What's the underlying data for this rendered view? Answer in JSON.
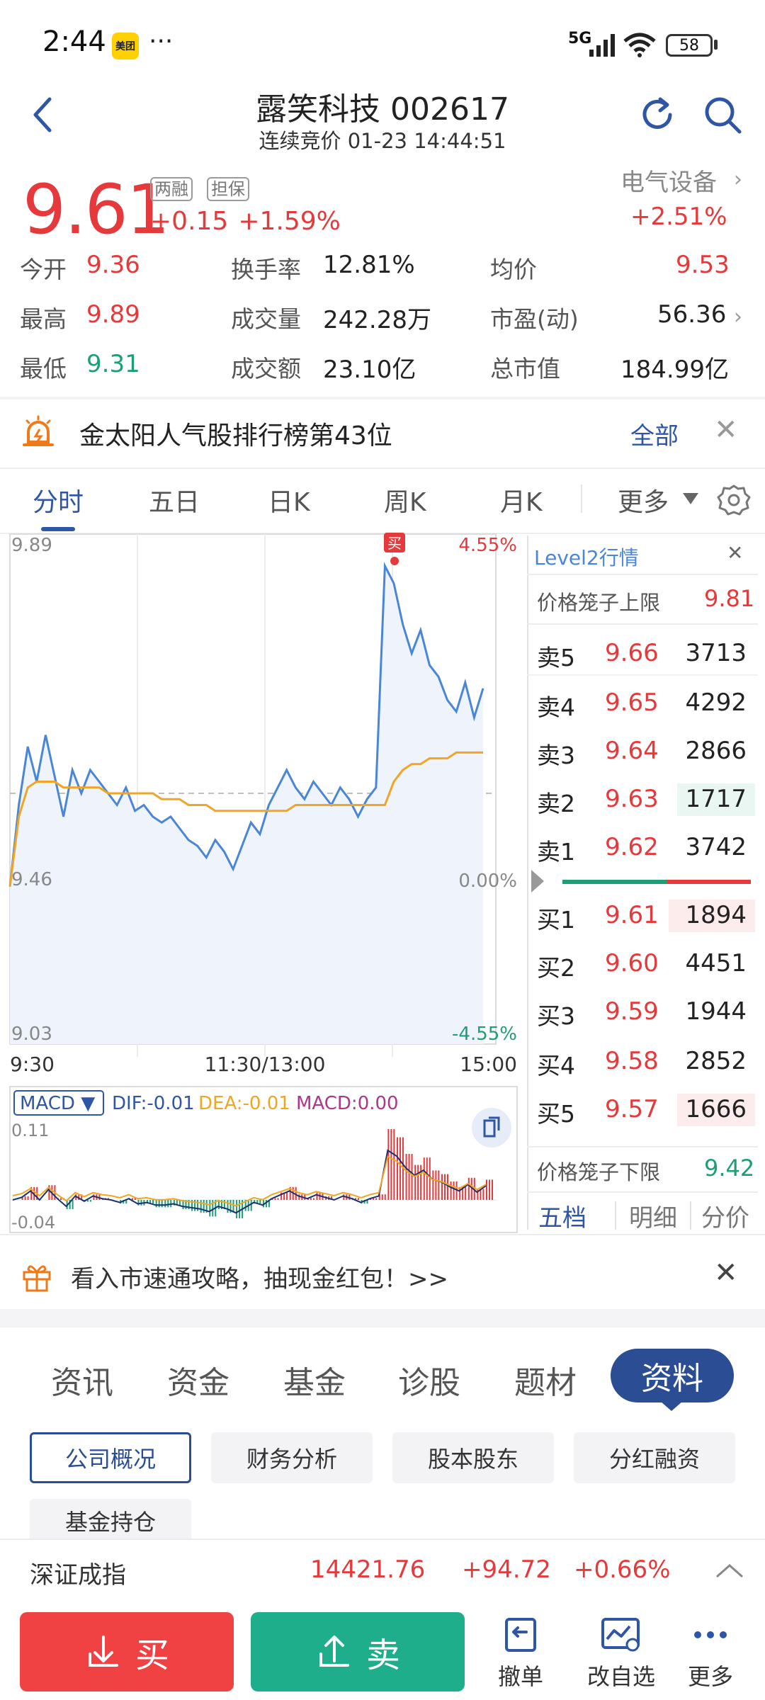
{
  "status_bar": {
    "time": "2:44",
    "app_badge": "美团",
    "more": "···",
    "network": "5G",
    "battery": "58"
  },
  "header": {
    "title": "露笑科技 002617",
    "subtitle": "连续竞价 01-23 14:44:51"
  },
  "quote": {
    "price": "9.61",
    "tag1": "两融",
    "tag2": "担保",
    "change": "+0.15",
    "change_pct": "+1.59%",
    "sector": "电气设备",
    "sector_change": "+2.51%",
    "stats": [
      {
        "label": "今开",
        "value": "9.36"
      },
      {
        "label": "换手率",
        "value": "12.81%"
      },
      {
        "label": "均价",
        "value": "9.53"
      },
      {
        "label": "最高",
        "value": "9.89"
      },
      {
        "label": "成交量",
        "value": "242.28万"
      },
      {
        "label": "市盈(动)",
        "value": "56.36"
      },
      {
        "label": "最低",
        "value": "9.31"
      },
      {
        "label": "成交额",
        "value": "23.10亿"
      },
      {
        "label": "总市值",
        "value": "184.99亿"
      }
    ]
  },
  "banner": {
    "text": "金太阳人气股排行榜第43位",
    "all": "全部",
    "close": "✕"
  },
  "chart_tabs": {
    "items": [
      "分时",
      "五日",
      "日K",
      "周K",
      "月K"
    ],
    "more": "更多"
  },
  "chart": {
    "y_max": "9.89",
    "y_min": "9.03",
    "y_mid": "9.46",
    "pct_max": "4.55%",
    "pct_zero": "0.00%",
    "pct_min": "-4.55%",
    "x_start": "9:30",
    "x_mid": "11:30/13:00",
    "x_end": "15:00",
    "buy_marker": "买",
    "macd_selector": "MACD ▼",
    "dif": "DIF:-0.01",
    "dea": "DEA:-0.01",
    "macd": "MACD:0.00",
    "macd_max": "0.11",
    "macd_min": "-0.04"
  },
  "chart_data": {
    "type": "line",
    "title": "",
    "xlabel": "",
    "ylabel": "",
    "ylim": [
      9.03,
      9.89
    ],
    "prev_close": 9.46,
    "x_ticks": [
      "9:30",
      "11:30/13:00",
      "15:00"
    ],
    "series": [
      {
        "values": [
          9.3,
          9.44,
          9.54,
          9.48,
          9.56,
          9.49,
          9.42,
          9.5,
          9.46,
          9.5,
          9.48,
          9.46,
          9.44,
          9.47,
          9.43,
          9.44,
          9.42,
          9.41,
          9.42,
          9.4,
          9.38,
          9.37,
          9.35,
          9.38,
          9.36,
          9.33,
          9.37,
          9.41,
          9.39,
          9.44,
          9.47,
          9.5,
          9.47,
          9.45,
          9.48,
          9.46,
          9.44,
          9.47,
          9.45,
          9.42,
          9.45,
          9.47,
          9.85,
          9.82,
          9.75,
          9.7,
          9.74,
          9.68,
          9.66,
          9.62,
          9.6,
          9.65,
          9.59,
          9.64
        ]
      },
      {
        "values": [
          9.3,
          9.42,
          9.47,
          9.48,
          9.48,
          9.48,
          9.47,
          9.47,
          9.47,
          9.47,
          9.47,
          9.46,
          9.46,
          9.46,
          9.46,
          9.46,
          9.46,
          9.45,
          9.45,
          9.45,
          9.44,
          9.44,
          9.44,
          9.43,
          9.43,
          9.43,
          9.43,
          9.43,
          9.43,
          9.43,
          9.43,
          9.43,
          9.44,
          9.44,
          9.44,
          9.44,
          9.44,
          9.44,
          9.44,
          9.44,
          9.44,
          9.44,
          9.44,
          9.48,
          9.5,
          9.51,
          9.51,
          9.52,
          9.52,
          9.52,
          9.53,
          9.53,
          9.53,
          9.53
        ]
      }
    ]
  },
  "order_book": {
    "title": "Level2行情",
    "close": "✕",
    "upper_limit_label": "价格笼子上限",
    "upper_limit": "9.81",
    "lower_limit_label": "价格笼子下限",
    "lower_limit": "9.42",
    "asks": [
      {
        "label": "卖5",
        "price": "9.66",
        "vol": "3713"
      },
      {
        "label": "卖4",
        "price": "9.65",
        "vol": "4292"
      },
      {
        "label": "卖3",
        "price": "9.64",
        "vol": "2866"
      },
      {
        "label": "卖2",
        "price": "9.63",
        "vol": "1717"
      },
      {
        "label": "卖1",
        "price": "9.62",
        "vol": "3742"
      }
    ],
    "bids": [
      {
        "label": "买1",
        "price": "9.61",
        "vol": "1894"
      },
      {
        "label": "买2",
        "price": "9.60",
        "vol": "4451"
      },
      {
        "label": "买3",
        "price": "9.59",
        "vol": "1944"
      },
      {
        "label": "买4",
        "price": "9.58",
        "vol": "2852"
      },
      {
        "label": "买5",
        "price": "9.57",
        "vol": "1666"
      }
    ],
    "tabs": [
      "五档",
      "明细",
      "分价"
    ]
  },
  "promo": {
    "text": "看入市速通攻略，抽现金红包！>>",
    "close": "✕"
  },
  "bottom_tabs": {
    "items": [
      "资讯",
      "资金",
      "基金",
      "诊股",
      "题材"
    ],
    "active": "资料"
  },
  "chips": [
    "公司概况",
    "财务分析",
    "股本股东",
    "分红融资",
    "基金持仓"
  ],
  "index_bar": {
    "name": "深证成指",
    "value": "14421.76",
    "change": "+94.72",
    "change_pct": "+0.66%"
  },
  "bottom_nav": {
    "buy": "买",
    "sell": "卖",
    "cancel": "撤单",
    "watchlist": "改自选",
    "more": "更多"
  },
  "colors": {
    "up": "#e5393b",
    "down": "#1e9e76",
    "accent": "#2f56a6"
  }
}
